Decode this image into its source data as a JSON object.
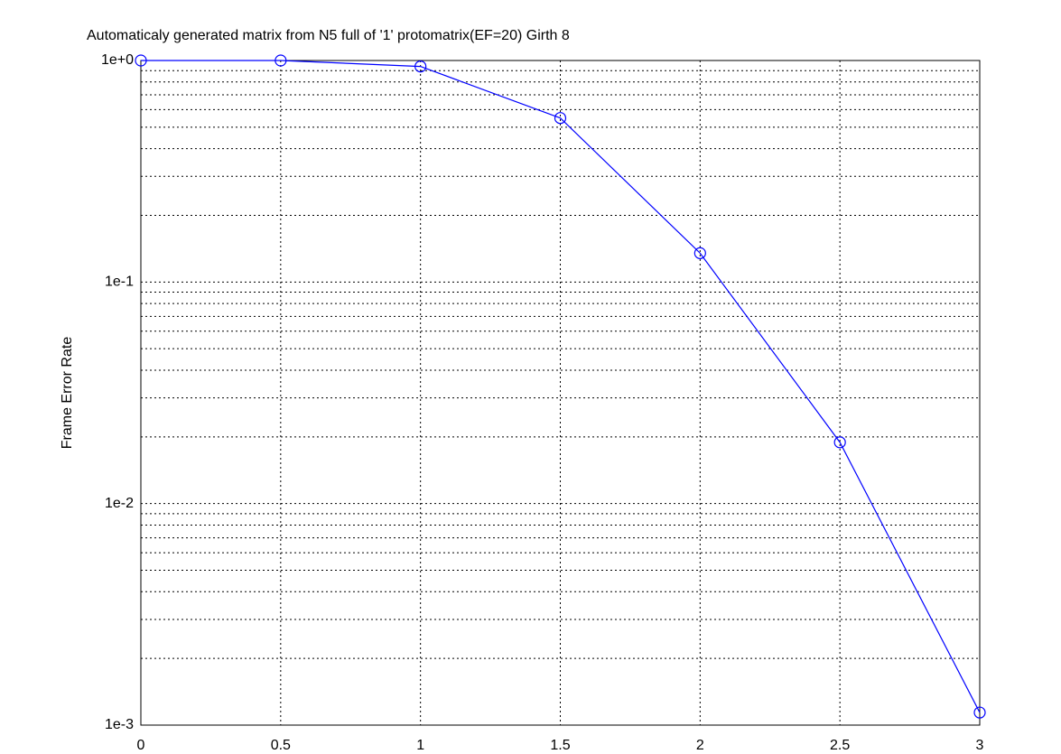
{
  "chart_data": {
    "type": "line",
    "title": "Automaticaly generated matrix from N5 full of '1' protomatrix(EF=20) Girth 8",
    "y_label": "Frame Error Rate",
    "x": [
      0,
      0.5,
      1,
      1.5,
      2,
      2.5,
      3
    ],
    "series": [
      {
        "color": "#0000ff",
        "marker": "circle",
        "values": [
          1.0,
          1.0,
          0.94,
          0.55,
          0.135,
          0.0189,
          0.00114
        ]
      }
    ],
    "xlim": [
      0,
      3
    ],
    "xticks": [
      0,
      0.5,
      1,
      1.5,
      2,
      2.5,
      3
    ],
    "ylim": [
      0.001,
      1
    ],
    "y_log": true,
    "yticks": [
      {
        "value": 1,
        "label": "1e+0"
      },
      {
        "value": 0.1,
        "label": "1e-1"
      },
      {
        "value": 0.01,
        "label": "1e-2"
      },
      {
        "value": 0.001,
        "label": "1e-3"
      }
    ],
    "grid": true,
    "minor_grid": true
  }
}
